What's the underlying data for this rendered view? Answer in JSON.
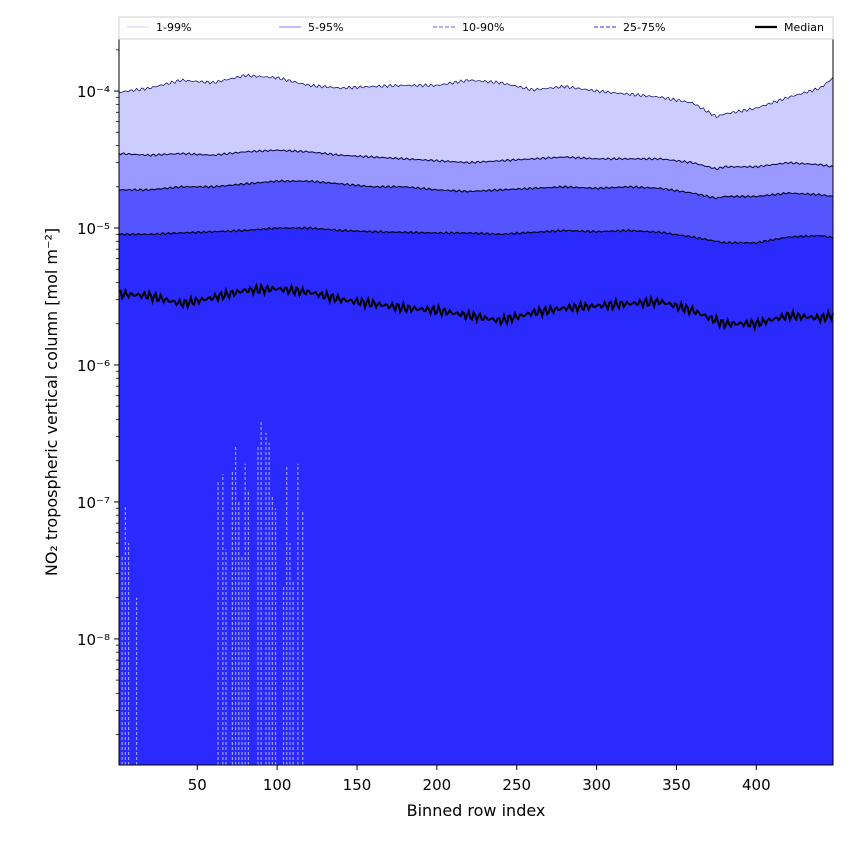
{
  "chart_data": {
    "type": "area",
    "xlabel": "Binned row index",
    "ylabel": "NO₂ tropospheric vertical column [mol m⁻²]",
    "y_scale": "log",
    "xlim": [
      1,
      448
    ],
    "ylim": [
      1.2e-09,
      0.00024
    ],
    "grid": false,
    "legend_position": "top, spanning width",
    "x_ticks": [
      50,
      100,
      150,
      200,
      250,
      300,
      350,
      400
    ],
    "x_tick_labels": [
      "50",
      "100",
      "150",
      "200",
      "250",
      "300",
      "350",
      "400"
    ],
    "y_ticks": [
      1e-08,
      1e-07,
      1e-06,
      1e-05,
      0.0001
    ],
    "y_tick_labels": [
      "10⁻⁸",
      "10⁻⁷",
      "10⁻⁶",
      "10⁻⁵",
      "10⁻⁴"
    ],
    "legend": [
      {
        "label": "1-99%",
        "color": "#d8d8ff",
        "style": "solid"
      },
      {
        "label": "5-95%",
        "color": "#9999ff",
        "style": "solid"
      },
      {
        "label": "10-90%",
        "color": "#8080ff",
        "style": "dashed"
      },
      {
        "label": "25-75%",
        "color": "#5555ee",
        "style": "dashed"
      },
      {
        "label": "Median",
        "color": "#000000",
        "style": "solid"
      }
    ],
    "band_colors": {
      "p1_99": "#ccccff",
      "p5_95": "#9999ff",
      "p10_90": "#5555ff",
      "p25_75": "#2a2aff",
      "median_line": "#000000"
    },
    "x": [
      1,
      20,
      40,
      60,
      80,
      100,
      120,
      140,
      160,
      180,
      200,
      220,
      240,
      260,
      280,
      300,
      320,
      340,
      360,
      375,
      380,
      400,
      420,
      440,
      448
    ],
    "series": [
      {
        "name": "p99",
        "values": [
          9.8e-05,
          0.000105,
          0.00012,
          0.000115,
          0.00013,
          0.000125,
          0.00011,
          0.000105,
          0.000108,
          0.00011,
          0.00011,
          0.00012,
          0.000115,
          0.000102,
          0.000108,
          0.0001,
          9.5e-05,
          9e-05,
          8.2e-05,
          6.5e-05,
          6.8e-05,
          7.5e-05,
          9e-05,
          0.000105,
          0.000125
        ]
      },
      {
        "name": "p95",
        "values": [
          3.5e-05,
          3.4e-05,
          3.5e-05,
          3.4e-05,
          3.6e-05,
          3.7e-05,
          3.6e-05,
          3.4e-05,
          3.3e-05,
          3.2e-05,
          3.1e-05,
          3e-05,
          3.1e-05,
          3.2e-05,
          3.3e-05,
          3.2e-05,
          3.2e-05,
          3.2e-05,
          3e-05,
          2.7e-05,
          2.8e-05,
          2.8e-05,
          3e-05,
          2.9e-05,
          2.8e-05
        ]
      },
      {
        "name": "p90",
        "values": [
          1.9e-05,
          1.9e-05,
          2e-05,
          2e-05,
          2.1e-05,
          2.2e-05,
          2.2e-05,
          2.1e-05,
          2e-05,
          2e-05,
          1.9e-05,
          1.85e-05,
          1.9e-05,
          1.95e-05,
          2e-05,
          1.95e-05,
          2e-05,
          1.95e-05,
          1.8e-05,
          1.65e-05,
          1.7e-05,
          1.7e-05,
          1.8e-05,
          1.75e-05,
          1.7e-05
        ]
      },
      {
        "name": "p75",
        "values": [
          9e-06,
          9e-06,
          9.2e-06,
          9.4e-06,
          9.6e-06,
          1e-05,
          1e-05,
          9.6e-06,
          9.4e-06,
          9.3e-06,
          9.2e-06,
          9.2e-06,
          9e-06,
          9.3e-06,
          9.6e-06,
          9.4e-06,
          9.6e-06,
          9.3e-06,
          8.6e-06,
          8e-06,
          7.8e-06,
          7.8e-06,
          8.6e-06,
          8.8e-06,
          8.5e-06
        ]
      },
      {
        "name": "median",
        "values": [
          3.3e-06,
          3.2e-06,
          2.8e-06,
          3.1e-06,
          3.5e-06,
          3.6e-06,
          3.4e-06,
          3e-06,
          2.8e-06,
          2.6e-06,
          2.5e-06,
          2.3e-06,
          2.1e-06,
          2.4e-06,
          2.6e-06,
          2.7e-06,
          2.8e-06,
          2.9e-06,
          2.5e-06,
          2.1e-06,
          2e-06,
          2e-06,
          2.3e-06,
          2.2e-06,
          2.3e-06
        ]
      }
    ],
    "lower_percentile_spikes": {
      "x": [
        3,
        5,
        7,
        12,
        63,
        66,
        68,
        72,
        74,
        76,
        78,
        80,
        82,
        88,
        90,
        93,
        95,
        97,
        99,
        104,
        106,
        108,
        110,
        113,
        116
      ],
      "values": [
        4e-08,
        9.5e-08,
        5e-08,
        2e-08,
        1.4e-07,
        1.6e-07,
        4.5e-08,
        1.7e-07,
        2.6e-07,
        1e-07,
        4e-08,
        1.9e-07,
        1.2e-07,
        2.6e-07,
        3.9e-07,
        3.2e-07,
        2.7e-07,
        1.1e-07,
        9e-08,
        2.4e-08,
        1.8e-07,
        5e-08,
        2.6e-08,
        1.9e-07,
        8.5e-08
      ]
    }
  }
}
